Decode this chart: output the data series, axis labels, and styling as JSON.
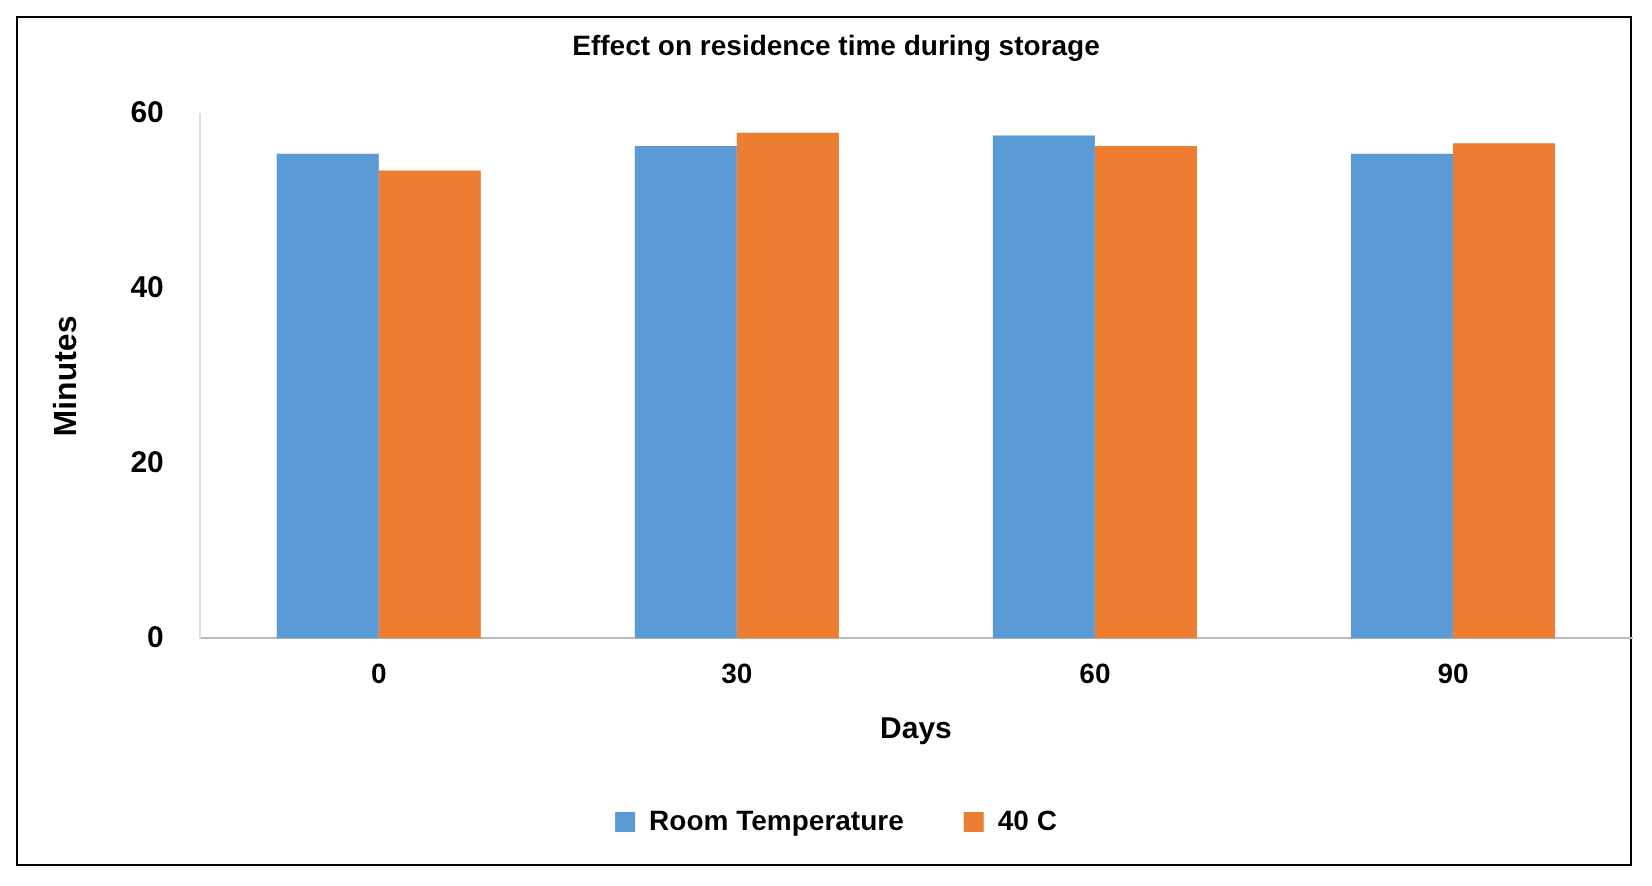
{
  "chart_data": {
    "type": "bar",
    "title": "Effect on residence time during storage",
    "xlabel": "Days",
    "ylabel": "Minutes",
    "categories": [
      "0",
      "30",
      "60",
      "90"
    ],
    "series": [
      {
        "name": "Room Temperature",
        "color": "#5b9bd5",
        "values": [
          55.4,
          56.3,
          57.5,
          55.4
        ]
      },
      {
        "name": "40 C",
        "color": "#ed7d31",
        "values": [
          53.5,
          57.8,
          56.3,
          56.6
        ]
      }
    ],
    "ylim": [
      0,
      60
    ],
    "yticks": [
      0,
      20,
      40,
      60
    ],
    "grid": false,
    "legend": "bottom"
  }
}
